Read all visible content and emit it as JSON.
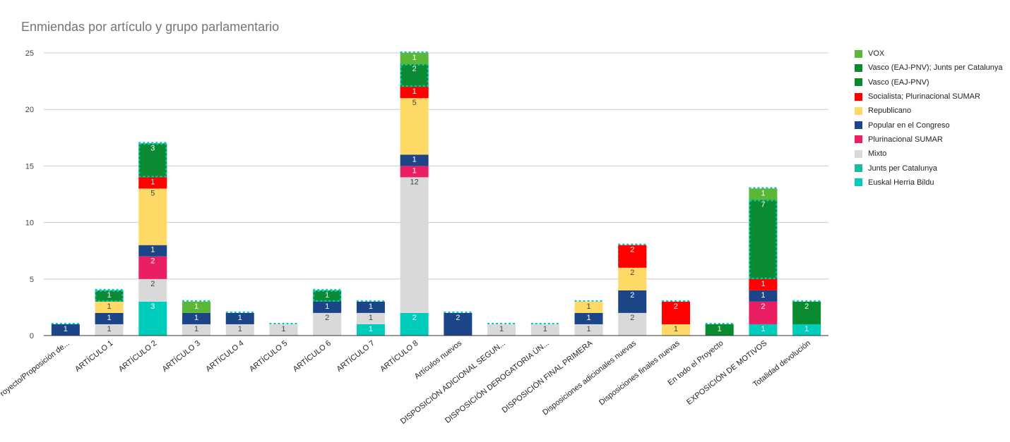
{
  "chart_data": {
    "type": "bar",
    "stacked": true,
    "title": "Enmiendas por artículo y grupo parlamentario",
    "xlabel": "",
    "ylabel": "",
    "ylim": [
      0,
      25
    ],
    "yticks": [
      "0",
      "5",
      "10",
      "15",
      "20",
      "25"
    ],
    "grid": true,
    "legend_position": "right",
    "categories": [
      "al Proyecto/Proposición de...",
      "ARTÍCULO 1",
      "ARTÍCULO 2",
      "ARTÍCULO 3",
      "ARTÍCULO 4",
      "ARTÍCULO 5",
      "ARTÍCULO 6",
      "ARTÍCULO 7",
      "ARTÍCULO 8",
      "Artículos nuevos",
      "DISPOSICIÓN ADICIONAL SEGUN...",
      "DISPOSICIÓN DEROGATORIA ÚN...",
      "DISPOSICIÓN FINAL PRIMERA",
      "Disposiciones adicionales nuevas",
      "Disposiciones finales nuevas",
      "En todo el Proyecto",
      "EXPOSICIÓN DE MOTIVOS",
      "Totalidad devolución"
    ],
    "series": [
      {
        "name": "Euskal Herria Bildu",
        "color": "#00ccbb",
        "values": [
          0,
          0,
          3,
          0,
          0,
          0,
          0,
          1,
          2,
          0,
          0,
          0,
          0,
          0,
          0,
          0,
          1,
          1
        ]
      },
      {
        "name": "Junts per Catalunya",
        "color": "#1abc9c",
        "values": [
          0,
          0,
          0,
          0,
          0,
          0,
          0,
          0,
          0,
          0,
          0,
          0,
          0,
          0,
          0,
          0,
          0,
          0
        ]
      },
      {
        "name": "Mixto",
        "color": "#d9d9d9",
        "values": [
          0,
          1,
          2,
          1,
          1,
          1,
          2,
          1,
          12,
          0,
          1,
          1,
          1,
          2,
          0,
          0,
          0,
          0
        ]
      },
      {
        "name": "Plurinacional SUMAR",
        "color": "#e91e63",
        "values": [
          0,
          0,
          2,
          0,
          0,
          0,
          0,
          0,
          1,
          0,
          0,
          0,
          0,
          0,
          0,
          0,
          2,
          0
        ]
      },
      {
        "name": "Popular en el Congreso",
        "color": "#1c4587",
        "values": [
          1,
          1,
          1,
          1,
          1,
          0,
          1,
          1,
          1,
          2,
          0,
          0,
          1,
          2,
          0,
          0,
          1,
          0
        ]
      },
      {
        "name": "Republicano",
        "color": "#ffd966",
        "values": [
          0,
          1,
          5,
          0,
          0,
          0,
          0,
          0,
          5,
          0,
          0,
          0,
          1,
          2,
          1,
          0,
          0,
          0
        ]
      },
      {
        "name": "Socialista; Plurinacional SUMAR",
        "color": "#ff0000",
        "values": [
          0,
          0,
          1,
          0,
          0,
          0,
          0,
          0,
          1,
          0,
          0,
          0,
          0,
          2,
          2,
          0,
          1,
          0
        ]
      },
      {
        "name": "Vasco (EAJ-PNV)",
        "color": "#0a8a2e",
        "values": [
          0,
          0,
          0,
          0,
          0,
          0,
          0,
          0,
          0,
          0,
          0,
          0,
          0,
          0,
          0,
          1,
          0,
          2
        ]
      },
      {
        "name": "Vasco (EAJ-PNV); Junts per Catalunya",
        "color": "#0b8a34",
        "values": [
          0,
          1,
          3,
          0,
          0,
          0,
          1,
          0,
          2,
          0,
          0,
          0,
          0,
          0,
          0,
          0,
          7,
          0
        ]
      },
      {
        "name": "VOX",
        "color": "#5ab738",
        "values": [
          0,
          0,
          0,
          1,
          0,
          0,
          0,
          0,
          1,
          0,
          0,
          0,
          0,
          0,
          0,
          0,
          1,
          0
        ]
      }
    ],
    "legend_order": [
      "VOX",
      "Vasco (EAJ-PNV); Junts per Catalunya",
      "Vasco (EAJ-PNV)",
      "Socialista; Plurinacional SUMAR",
      "Republicano",
      "Popular en el Congreso",
      "Plurinacional SUMAR",
      "Mixto",
      "Junts per Catalunya",
      "Euskal Herria Bildu"
    ]
  }
}
